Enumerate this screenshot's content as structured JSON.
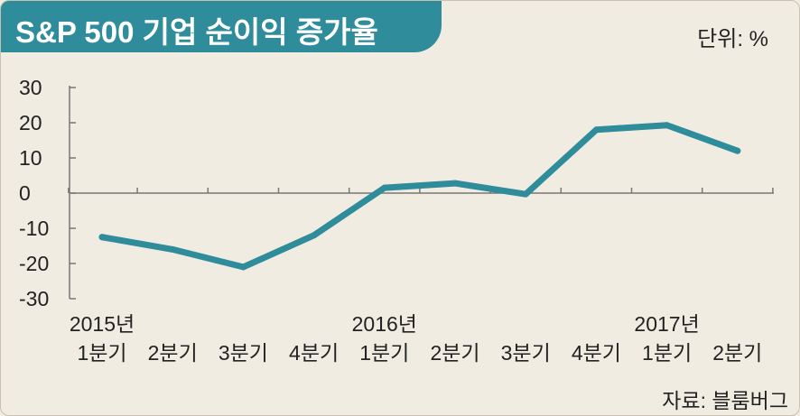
{
  "header": {
    "title": "S&P 500 기업 순이익 증가율",
    "unit": "단위: %",
    "source": "자료: 블룸버그"
  },
  "colors": {
    "accent": "#2e8c9b",
    "background": "#f1ece1",
    "axis": "#777777"
  },
  "chart_data": {
    "type": "line",
    "title": "S&P 500 기업 순이익 증가율",
    "ylabel": "단위: %",
    "xlabel": "",
    "ylim": [
      -30,
      30
    ],
    "yticks": [
      30,
      20,
      10,
      0,
      -10,
      -20,
      -30
    ],
    "grid": false,
    "categories": [
      "1분기",
      "2분기",
      "3분기",
      "4분기",
      "1분기",
      "2분기",
      "3분기",
      "4분기",
      "1분기",
      "2분기"
    ],
    "year_labels": [
      {
        "index": 0,
        "label": "2015년"
      },
      {
        "index": 4,
        "label": "2016년"
      },
      {
        "index": 8,
        "label": "2017년"
      }
    ],
    "series": [
      {
        "values": [
          -12.5,
          -16,
          -21,
          -12,
          1.5,
          2.8,
          -0.3,
          18,
          19.3,
          12
        ]
      }
    ]
  }
}
